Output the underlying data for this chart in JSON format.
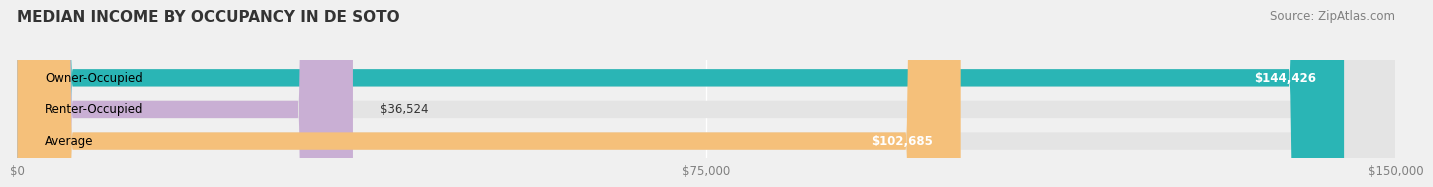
{
  "title": "MEDIAN INCOME BY OCCUPANCY IN DE SOTO",
  "source": "Source: ZipAtlas.com",
  "categories": [
    "Owner-Occupied",
    "Renter-Occupied",
    "Average"
  ],
  "values": [
    144426,
    36524,
    102685
  ],
  "bar_colors": [
    "#2ab5b5",
    "#c9afd4",
    "#f5c07a"
  ],
  "bar_labels": [
    "$144,426",
    "$36,524",
    "$102,685"
  ],
  "xlim": [
    0,
    150000
  ],
  "xticks": [
    0,
    75000,
    150000
  ],
  "xtick_labels": [
    "$0",
    "$75,000",
    "$150,000"
  ],
  "background_color": "#f0f0f0",
  "bar_bg_color": "#e4e4e4",
  "title_fontsize": 11,
  "source_fontsize": 8.5,
  "label_fontsize": 8.5,
  "tick_fontsize": 8.5
}
